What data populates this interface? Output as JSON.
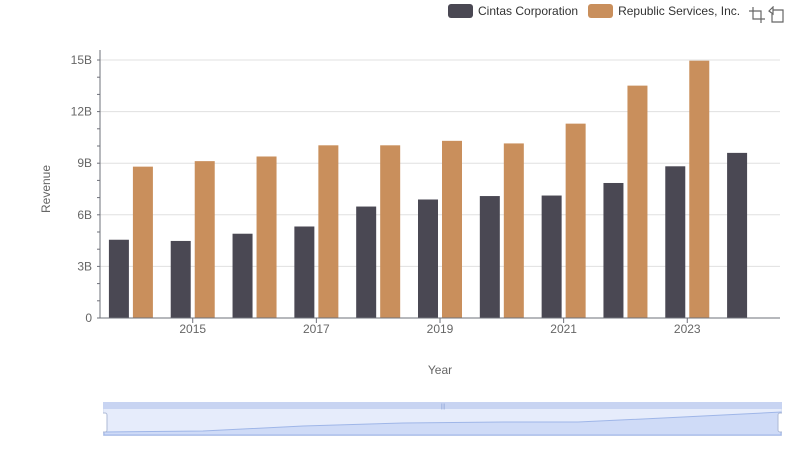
{
  "legend": {
    "cintas": {
      "label": "Cintas Corporation",
      "color": "#4a4853"
    },
    "republic": {
      "label": "Republic Services, Inc.",
      "color": "#c98f5c"
    }
  },
  "toolbox": {
    "icons": [
      "zoom-select-icon",
      "zoom-reset-icon"
    ]
  },
  "chart_data": {
    "type": "bar",
    "xlabel": "Year",
    "ylabel": "Revenue",
    "ylim": [
      0,
      15000000000
    ],
    "y_ticks": [
      "0",
      "3B",
      "6B",
      "9B",
      "12B",
      "15B"
    ],
    "x_tick_labels": [
      "2015",
      "2017",
      "2019",
      "2021",
      "2023"
    ],
    "categories": [
      "2014",
      "2015",
      "2016",
      "2017",
      "2018",
      "2019",
      "2020",
      "2021",
      "2022",
      "2023",
      "2024"
    ],
    "grid": true,
    "legend_position": "top-right",
    "series": [
      {
        "name": "Cintas Corporation",
        "values": [
          4550000000,
          4480000000,
          4900000000,
          5320000000,
          6480000000,
          6890000000,
          7090000000,
          7120000000,
          7850000000,
          8820000000,
          9600000000
        ]
      },
      {
        "name": "Republic Services, Inc.",
        "values": [
          8800000000,
          9120000000,
          9390000000,
          10040000000,
          10040000000,
          10300000000,
          10150000000,
          11300000000,
          13510000000,
          14960000000,
          null
        ]
      }
    ]
  },
  "zoom_slider": {
    "start_percent": 0,
    "end_percent": 100
  }
}
